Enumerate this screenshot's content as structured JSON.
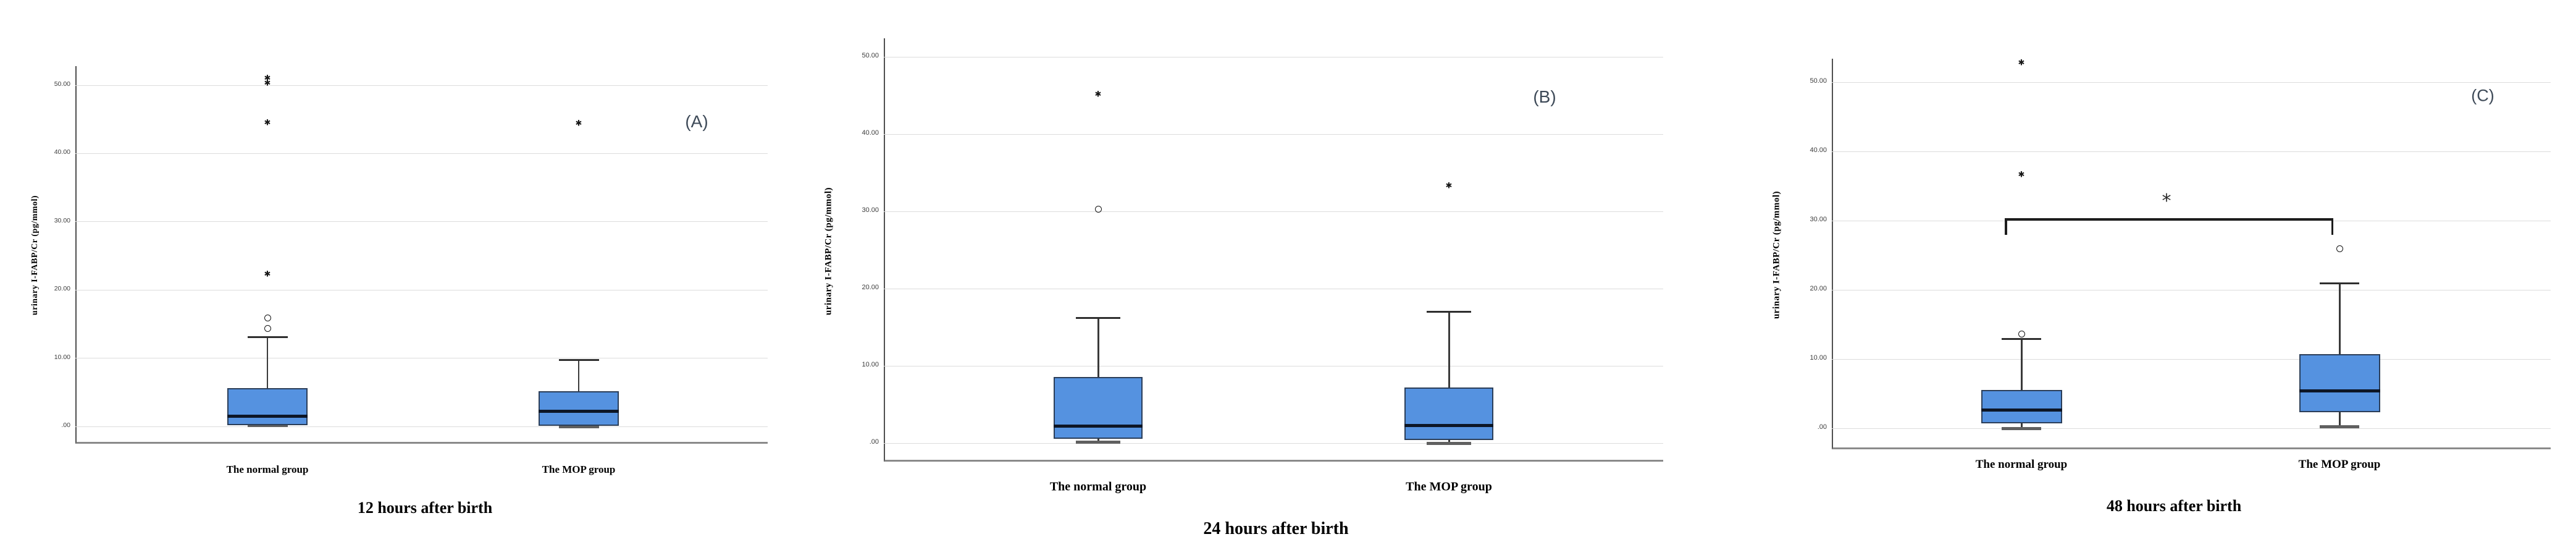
{
  "colors": {
    "box_fill": "#5592e0",
    "box_border": "#2b3e59",
    "median": "#0d1626",
    "gridline": "#dcdcdc",
    "axis_left": "#4f4f4f",
    "axis_bottom": "#8a8a8a",
    "whisker": "#3a3a3a",
    "cap_top": "#2e2e2e",
    "cap_bottom": "#606060",
    "outlier": "#161616",
    "panel_label_text": "#3e4a58"
  },
  "chart_data": [
    {
      "type": "boxplot",
      "panel_label": "(A)",
      "title": "12 hours after birth",
      "ylabel": "urinary I-FABP/Cr (pg/mmol)",
      "xlabel": "",
      "categories": [
        "The normal group",
        "The MOP group"
      ],
      "yticks": [
        ".00",
        "10.00",
        "20.00",
        "30.00",
        "40.00",
        "50.00"
      ],
      "ytick_values": [
        0,
        10,
        20,
        30,
        40,
        50
      ],
      "ylim": [
        -2.5,
        52.8
      ],
      "grid": true,
      "boxes": [
        {
          "category": "The normal group",
          "whisker_low": 0.1,
          "q1": 0.2,
          "median": 1.5,
          "q3": 5.6,
          "whisker_high": 13.1,
          "outliers_mild": [
            14.4,
            15.9
          ],
          "outliers_extreme": [
            22.3,
            44.5,
            50.3,
            51.0
          ]
        },
        {
          "category": "The MOP group",
          "whisker_low": 0.0,
          "q1": 0.1,
          "median": 2.2,
          "q3": 5.2,
          "whisker_high": 9.7,
          "outliers_mild": [],
          "outliers_extreme": [
            44.4
          ]
        }
      ],
      "significance": null
    },
    {
      "type": "boxplot",
      "panel_label": "(B)",
      "title": "24 hours after birth",
      "ylabel": "urinary I-FABP/Cr (pg/mmol)",
      "xlabel": "",
      "categories": [
        "The normal group",
        "The MOP group"
      ],
      "yticks": [
        ".00",
        "10.00",
        "20.00",
        "30.00",
        "40.00",
        "50.00"
      ],
      "ytick_values": [
        0,
        10,
        20,
        30,
        40,
        50
      ],
      "ylim": [
        -2.4,
        52.4
      ],
      "grid": true,
      "boxes": [
        {
          "category": "The normal group",
          "whisker_low": 0.1,
          "q1": 0.6,
          "median": 2.2,
          "q3": 8.6,
          "whisker_high": 16.2,
          "outliers_mild": [
            30.3
          ],
          "outliers_extreme": [
            45.1
          ]
        },
        {
          "category": "The MOP group",
          "whisker_low": 0.0,
          "q1": 0.4,
          "median": 2.3,
          "q3": 7.2,
          "whisker_high": 17.0,
          "outliers_mild": [],
          "outliers_extreme": [
            33.3
          ]
        }
      ],
      "significance": null
    },
    {
      "type": "boxplot",
      "panel_label": "(C)",
      "title": "48 hours after birth",
      "ylabel": "urinary I-FABP/Cr (pg/mmol)",
      "xlabel": "",
      "categories": [
        "The normal group",
        "The MOP group"
      ],
      "yticks": [
        ".00",
        "10.00",
        "20.00",
        "30.00",
        "40.00",
        "50.00"
      ],
      "ytick_values": [
        0,
        10,
        20,
        30,
        40,
        50
      ],
      "ylim": [
        -3.0,
        53.4
      ],
      "grid": true,
      "boxes": [
        {
          "category": "The normal group",
          "whisker_low": 0.0,
          "q1": 0.7,
          "median": 2.6,
          "q3": 5.5,
          "whisker_high": 12.9,
          "outliers_mild": [
            13.6
          ],
          "outliers_extreme": [
            36.6,
            52.8
          ]
        },
        {
          "category": "The MOP group",
          "whisker_low": 0.2,
          "q1": 2.3,
          "median": 5.4,
          "q3": 10.7,
          "whisker_high": 20.9,
          "outliers_mild": [
            25.9
          ],
          "outliers_extreme": []
        }
      ],
      "significance": {
        "label": "*",
        "y": 30.3,
        "between": [
          "The normal group",
          "The MOP group"
        ]
      }
    }
  ]
}
